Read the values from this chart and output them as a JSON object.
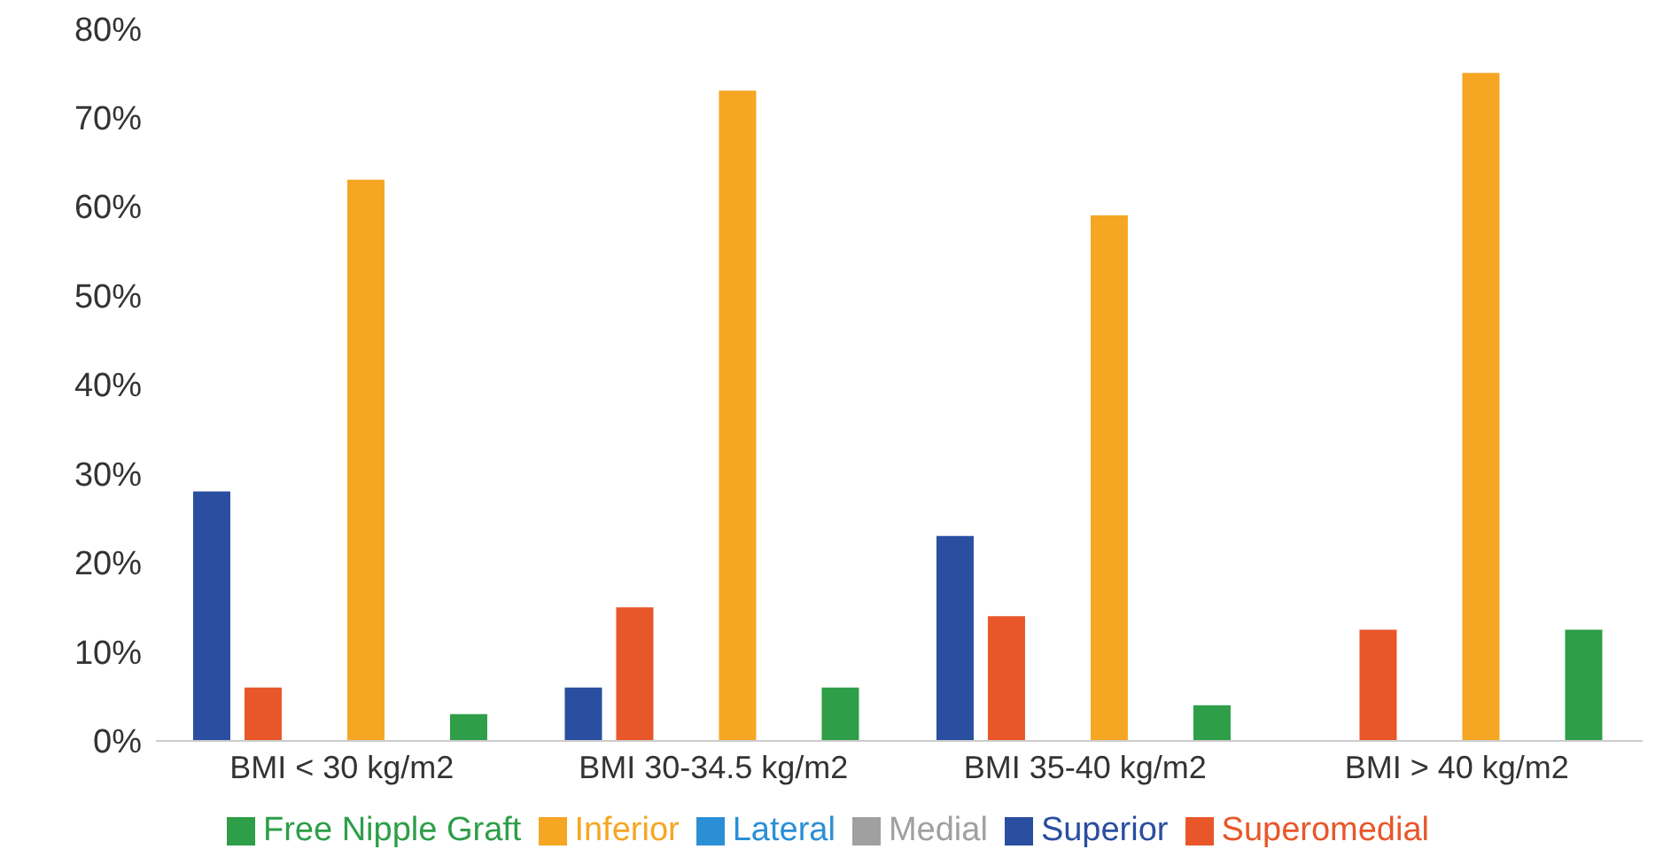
{
  "chart_data": {
    "type": "bar",
    "categories": [
      "BMI < 30 kg/m2",
      "BMI 30-34.5 kg/m2",
      "BMI 35-40 kg/m2",
      "BMI > 40 kg/m2"
    ],
    "series": [
      {
        "name": "Superior",
        "color": "#2a4ea0",
        "values": [
          28,
          6,
          23,
          0
        ]
      },
      {
        "name": "Superomedial",
        "color": "#e8572a",
        "values": [
          6,
          15,
          14,
          12.5
        ]
      },
      {
        "name": "Medial",
        "color": "#a0a0a0",
        "values": [
          0,
          0,
          0,
          0
        ]
      },
      {
        "name": "Inferior",
        "color": "#f5a623",
        "values": [
          63,
          73,
          59,
          75
        ]
      },
      {
        "name": "Lateral",
        "color": "#2b8fd6",
        "values": [
          0,
          0,
          0,
          0
        ]
      },
      {
        "name": "Free Nipple Graft",
        "color": "#2e9e48",
        "values": [
          3,
          6,
          4,
          12.5
        ]
      }
    ],
    "ylim": [
      0,
      80
    ],
    "yticks": [
      {
        "value": 0,
        "label": "0%"
      },
      {
        "value": 10,
        "label": "10%"
      },
      {
        "value": 20,
        "label": "20%"
      },
      {
        "value": 30,
        "label": "30%"
      },
      {
        "value": 40,
        "label": "40%"
      },
      {
        "value": 50,
        "label": "50%"
      },
      {
        "value": 60,
        "label": "60%"
      },
      {
        "value": 70,
        "label": "70%"
      },
      {
        "value": 80,
        "label": "80%"
      }
    ],
    "grid": false,
    "legend": "bottom"
  }
}
